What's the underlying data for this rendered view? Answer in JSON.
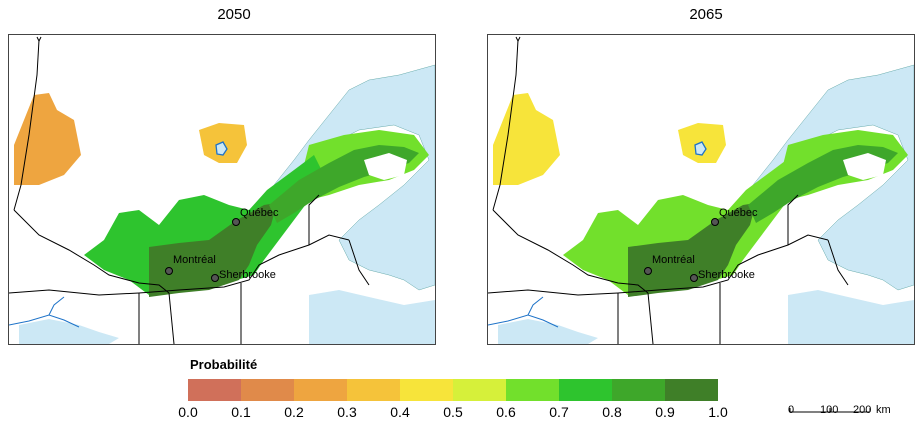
{
  "maps": [
    {
      "title": "2050",
      "scenario": "2050"
    },
    {
      "title": "2065",
      "scenario": "2065"
    }
  ],
  "cities": [
    {
      "name": "Québec"
    },
    {
      "name": "Montréal"
    },
    {
      "name": "Sherbrooke"
    }
  ],
  "legend": {
    "title": "Probabilité",
    "classes": [
      {
        "range": [
          0.0,
          0.1
        ],
        "color": "#d0705a"
      },
      {
        "range": [
          0.1,
          0.2
        ],
        "color": "#e08a4a"
      },
      {
        "range": [
          0.2,
          0.3
        ],
        "color": "#eea540"
      },
      {
        "range": [
          0.3,
          0.4
        ],
        "color": "#f5c33a"
      },
      {
        "range": [
          0.4,
          0.5
        ],
        "color": "#f7e43a"
      },
      {
        "range": [
          0.5,
          0.6
        ],
        "color": "#d6f03a"
      },
      {
        "range": [
          0.6,
          0.7
        ],
        "color": "#72e02c"
      },
      {
        "range": [
          0.7,
          0.8
        ],
        "color": "#2ec42e"
      },
      {
        "range": [
          0.8,
          0.9
        ],
        "color": "#3ea72a"
      },
      {
        "range": [
          0.9,
          1.0
        ],
        "color": "#3f7f28"
      }
    ],
    "ticks": [
      "0.0",
      "0.1",
      "0.2",
      "0.3",
      "0.4",
      "0.5",
      "0.6",
      "0.7",
      "0.8",
      "0.9",
      "1.0"
    ]
  },
  "scale": {
    "labels": [
      "0",
      "100",
      "200"
    ],
    "unit": "km"
  },
  "colors": {
    "water": "#cce8f5",
    "river": "#1e73c8",
    "border": "#000000"
  }
}
